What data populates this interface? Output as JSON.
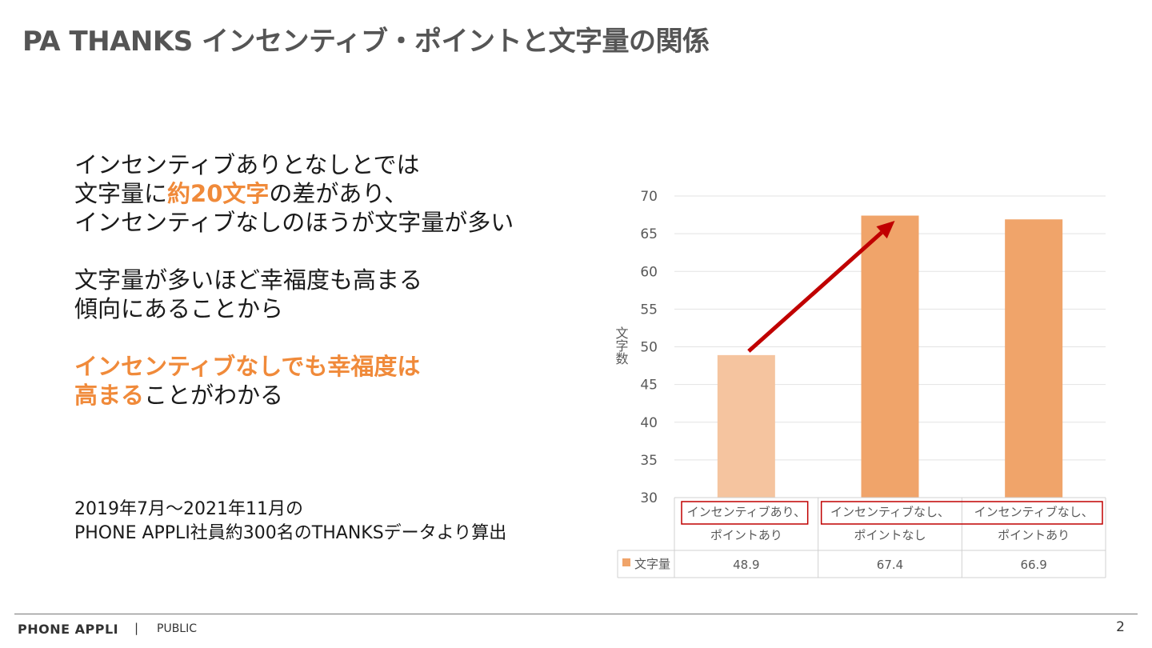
{
  "slide": {
    "title": "PA THANKS インセンティブ・ポイントと文字量の関係",
    "page_number": "2"
  },
  "body": {
    "p1_line1": "インセンティブありとなしとでは",
    "p1_line2_pre": "文字量に",
    "p1_line2_hl": "約20文字",
    "p1_line2_post": "の差があり、",
    "p1_line3": "インセンティブなしのほうが文字量が多い",
    "p2_line1": "文字量が多いほど幸福度も高まる",
    "p2_line2": "傾向にあることから",
    "p3_line1_hl": "インセンティブなしでも幸福度は",
    "p3_line2_hl": "高まる",
    "p3_line2_post": "ことがわかる"
  },
  "source": {
    "line1": "2019年7月～2021年11月の",
    "line2": "PHONE APPLI社員約300名のTHANKSデータより算出"
  },
  "footer": {
    "brand": "PHONE APPLI",
    "separator": "|",
    "classification": "PUBLIC"
  },
  "colors": {
    "accent": "#F08A3A",
    "bar_light": "#F5C49F",
    "bar": "#F0A46A",
    "arrow": "#C00000",
    "highlight_box": "#C00000"
  },
  "chart_data": {
    "type": "bar",
    "categories": [
      [
        "インセンティブあり、",
        "ポイントあり"
      ],
      [
        "インセンティブなし、",
        "ポイントなし"
      ],
      [
        "インセンティブなし、",
        "ポイントあり"
      ]
    ],
    "series": [
      {
        "name": "文字量",
        "values": [
          48.9,
          67.4,
          66.9
        ]
      }
    ],
    "value_labels": [
      "48.9",
      "67.4",
      "66.9"
    ],
    "ylabel": "文字数",
    "ylim": [
      30,
      70
    ],
    "yticks": [
      30,
      35,
      40,
      45,
      50,
      55,
      60,
      65,
      70
    ],
    "grid": true,
    "data_table": true,
    "annotation": "arrow from bar 1 to bar 2"
  }
}
